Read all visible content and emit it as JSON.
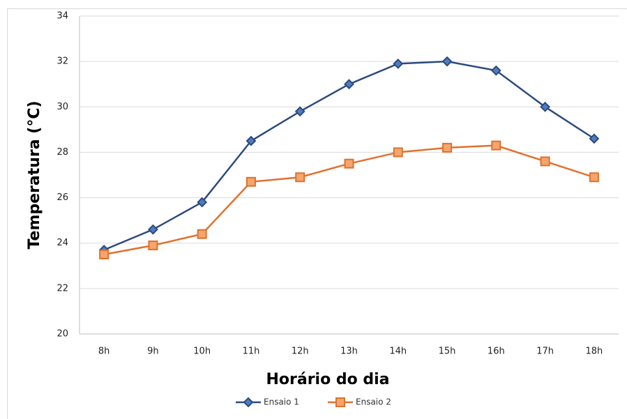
{
  "chart_data": {
    "type": "line",
    "x_label": "Horário do dia",
    "y_label": "Temperatura (°C)",
    "categories": [
      "8h",
      "9h",
      "10h",
      "11h",
      "12h",
      "13h",
      "14h",
      "15h",
      "16h",
      "17h",
      "18h"
    ],
    "series": [
      {
        "name": "Ensaio 1",
        "color": "#2c4a7e",
        "marker": "diamond",
        "marker_color": "#4f7cbf",
        "values": [
          23.7,
          24.6,
          25.8,
          28.5,
          29.8,
          31.0,
          31.9,
          32.0,
          31.6,
          30.0,
          28.6
        ]
      },
      {
        "name": "Ensaio 2",
        "color": "#e0712c",
        "marker": "square",
        "marker_color": "#f5a56e",
        "values": [
          23.5,
          23.9,
          24.4,
          26.7,
          26.9,
          27.5,
          28.0,
          28.2,
          28.3,
          27.6,
          26.9
        ]
      }
    ],
    "ylim": [
      20,
      34
    ],
    "yticks": [
      20,
      22,
      24,
      26,
      28,
      30,
      32,
      34
    ],
    "grid": true,
    "legend": "bottom"
  }
}
